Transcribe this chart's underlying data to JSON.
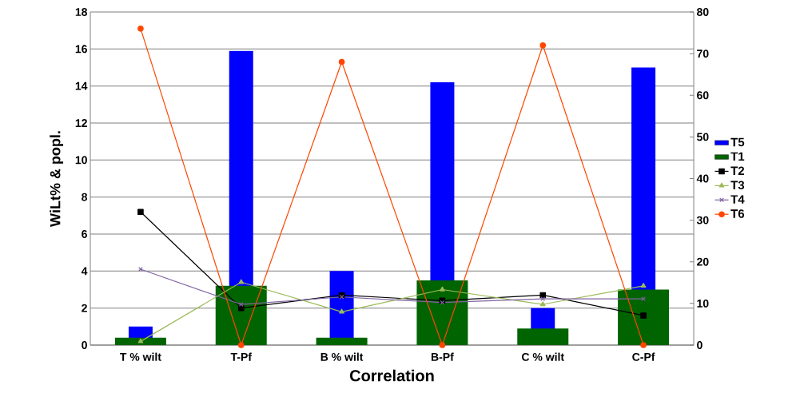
{
  "chart_data": {
    "type": "bar",
    "xlabel": "Correlation",
    "ylabel": "WiLt% & popl.",
    "categories": [
      "T % wilt",
      "T-Pf",
      "B % wilt",
      "B-Pf",
      "C % wilt",
      "C-Pf"
    ],
    "series": [
      {
        "name": "T5",
        "color": "#0000ff",
        "values": [
          1.0,
          15.9,
          4.0,
          14.2,
          2.0,
          15.0
        ]
      },
      {
        "name": "T1",
        "color": "#006400",
        "values": [
          0.4,
          3.2,
          0.4,
          3.5,
          0.9,
          3.0
        ]
      },
      {
        "name": "T2",
        "type": "line",
        "color": "#000000",
        "marker": "square",
        "values": [
          7.2,
          2.0,
          2.7,
          2.4,
          2.7,
          1.6
        ]
      },
      {
        "name": "T3",
        "type": "line",
        "color": "#9bbb59",
        "marker": "triangle",
        "values": [
          0.2,
          3.4,
          1.8,
          3.0,
          2.2,
          3.2
        ]
      },
      {
        "name": "T4",
        "type": "line",
        "color": "#8064a2",
        "marker": "cross",
        "values": [
          4.1,
          2.2,
          2.6,
          2.3,
          2.5,
          2.5
        ]
      },
      {
        "name": "T6",
        "type": "line",
        "color": "#ff4500",
        "marker": "circle",
        "axis": "y2",
        "values": [
          76,
          0,
          68,
          0,
          72,
          0
        ]
      }
    ],
    "ylim": [
      0,
      18
    ],
    "yticks": [
      0,
      2,
      4,
      6,
      8,
      10,
      12,
      14,
      16,
      18
    ],
    "y2lim": [
      0,
      80
    ],
    "y2ticks": [
      0,
      10,
      20,
      30,
      40,
      50,
      60,
      70,
      80
    ],
    "grid": "y",
    "legend": "right"
  }
}
